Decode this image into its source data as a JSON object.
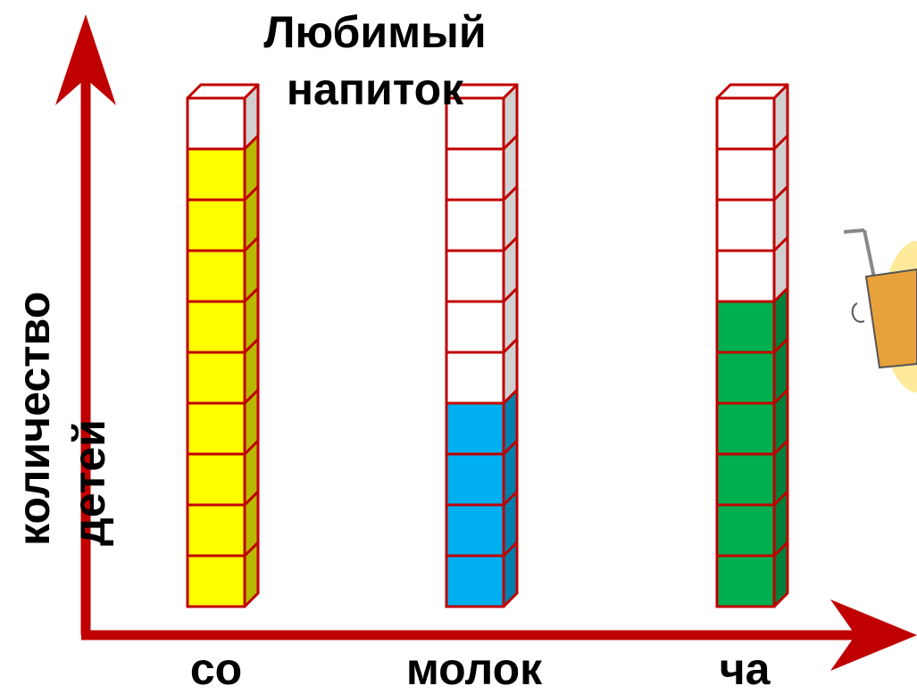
{
  "title": "Любимый напиток",
  "title_lines": [
    "Любимый",
    "напиток"
  ],
  "ylabel_lines": [
    "количество",
    "детей"
  ],
  "colors": {
    "axis": "#c00000",
    "outline": "#c00000",
    "juice": "#ffff00",
    "milk": "#00b0f0",
    "tea": "#00b050",
    "empty": "#ffffff",
    "empty_side": "#d0d0d0"
  },
  "chart_data": {
    "type": "bar",
    "title": "Любимый напиток",
    "xlabel": "",
    "ylabel": "количество детей",
    "categories": [
      "со",
      "молок",
      "ча"
    ],
    "values": [
      9,
      4,
      6
    ],
    "capacity": 10,
    "ylim": [
      0,
      10
    ],
    "grid": false,
    "legend": "none"
  }
}
